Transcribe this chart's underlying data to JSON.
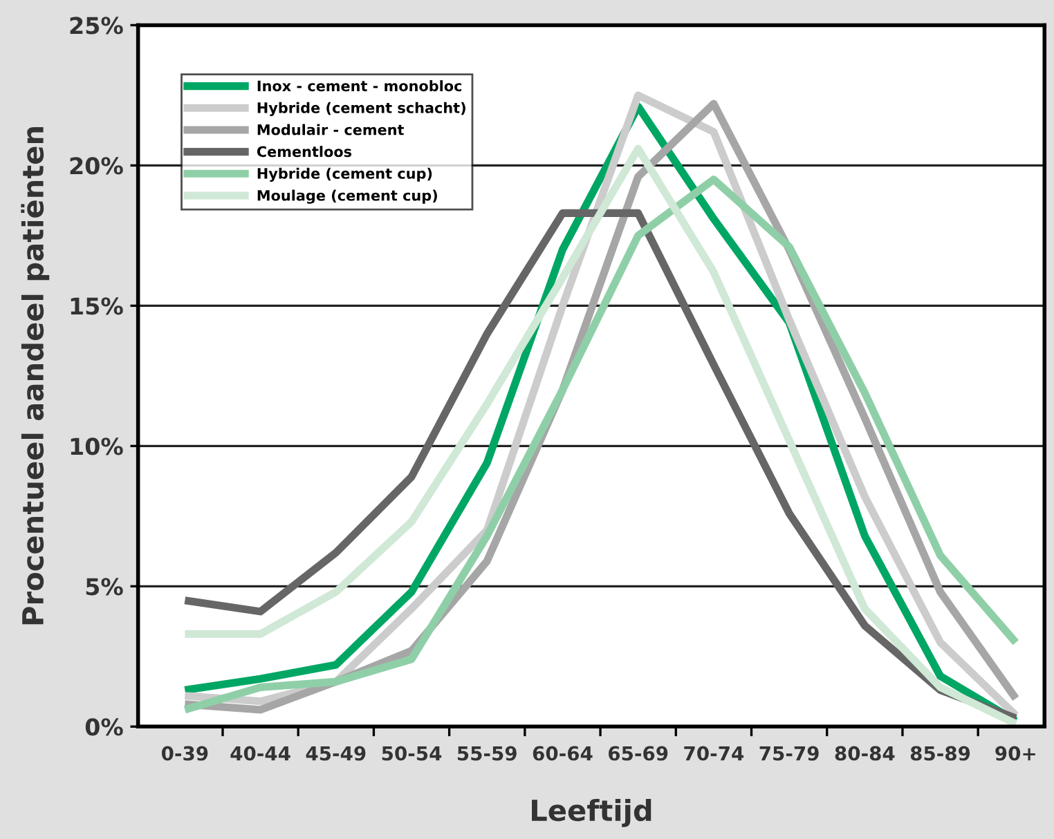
{
  "chart_data": {
    "type": "line",
    "xlabel": "Leeftijd",
    "ylabel": "Procentueel aandeel patiënten",
    "categories": [
      "0-39",
      "40-44",
      "45-49",
      "50-54",
      "55-59",
      "60-64",
      "65-69",
      "70-74",
      "75-79",
      "80-84",
      "85-89",
      "90+"
    ],
    "series": [
      {
        "name": "Inox - cement - monobloc",
        "color": "#00a664",
        "values": [
          1.3,
          1.7,
          2.2,
          4.8,
          9.4,
          17.0,
          22.1,
          18.1,
          14.4,
          6.8,
          1.8,
          0.2
        ]
      },
      {
        "name": "Hybride (cement schacht)",
        "color": "#cccccc",
        "values": [
          1.1,
          0.9,
          1.6,
          4.2,
          7.0,
          15.0,
          22.5,
          21.2,
          14.5,
          8.2,
          3.0,
          0.4
        ]
      },
      {
        "name": "Modulair - cement",
        "color": "#a6a6a6",
        "values": [
          0.8,
          0.6,
          1.6,
          2.7,
          5.9,
          12.0,
          19.6,
          22.2,
          17.0,
          11.0,
          4.8,
          1.0
        ]
      },
      {
        "name": "Cementloos",
        "color": "#666666",
        "values": [
          4.5,
          4.1,
          6.2,
          8.9,
          14.0,
          18.3,
          18.3,
          12.9,
          7.6,
          3.6,
          1.3,
          0.3
        ]
      },
      {
        "name": "Hybride (cement cup)",
        "color": "#8fcfa8",
        "values": [
          0.6,
          1.4,
          1.6,
          2.4,
          6.8,
          12.0,
          17.5,
          19.5,
          17.1,
          11.9,
          6.1,
          3.0
        ]
      },
      {
        "name": "Moulage (cement cup)",
        "color": "#d0e8d6",
        "values": [
          3.3,
          3.3,
          4.8,
          7.3,
          11.5,
          16.0,
          20.6,
          16.2,
          10.2,
          4.2,
          1.4,
          0.1
        ]
      }
    ],
    "ylim": [
      0,
      25
    ],
    "yticks": [
      {
        "value": 0,
        "label": "0%"
      },
      {
        "value": 5,
        "label": "5%"
      },
      {
        "value": 10,
        "label": "10%"
      },
      {
        "value": 15,
        "label": "15%"
      },
      {
        "value": 20,
        "label": "20%"
      },
      {
        "value": 25,
        "label": "25%"
      }
    ],
    "grid": "y",
    "legend": "top left",
    "marker": "none",
    "line_style": "solid"
  }
}
